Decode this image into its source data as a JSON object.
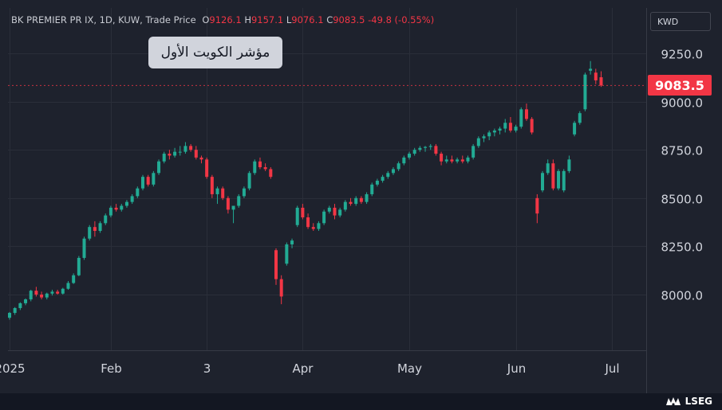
{
  "header": {
    "symbol": "BK PREMIER PR IX, 1D, KUW, Trade Price",
    "open_label": "O",
    "open": "9126.1",
    "high_label": "H",
    "high": "9157.1",
    "low_label": "L",
    "low": "9076.1",
    "close_label": "C",
    "close": "9083.5",
    "change": "-49.8 (-0.55%)"
  },
  "overlay_title": "مؤشر الكويت الأول",
  "currency": "KWD",
  "last_price": "9083.5",
  "brand": "LSEG",
  "colors": {
    "up": "#22ab94",
    "down": "#f23645",
    "background": "#1e222d",
    "grid": "#2a2e39",
    "text": "#d1d4dc"
  },
  "chart_data": {
    "type": "candlestick",
    "title": "",
    "ylim": [
      7870,
      9330
    ],
    "y_ticks": [
      "8000.0",
      "8250.0",
      "8500.0",
      "8750.0",
      "9000.0",
      "9250.0"
    ],
    "x_ticks": [
      {
        "label": "2025",
        "bar": 0
      },
      {
        "label": "Feb",
        "bar": 19
      },
      {
        "label": "3",
        "bar": 37
      },
      {
        "label": "Apr",
        "bar": 55
      },
      {
        "label": "May",
        "bar": 75
      },
      {
        "label": "Jun",
        "bar": 95
      },
      {
        "label": "Jul",
        "bar": 113
      }
    ],
    "grid": true,
    "ohlc": [
      [
        7880,
        7910,
        7870,
        7905
      ],
      [
        7905,
        7935,
        7895,
        7930
      ],
      [
        7930,
        7960,
        7920,
        7955
      ],
      [
        7955,
        7980,
        7945,
        7975
      ],
      [
        7975,
        8025,
        7965,
        8020
      ],
      [
        8020,
        8040,
        7990,
        8000
      ],
      [
        8000,
        8015,
        7975,
        7985
      ],
      [
        7985,
        8010,
        7975,
        8005
      ],
      [
        8005,
        8025,
        7995,
        8015
      ],
      [
        8015,
        8025,
        8000,
        8005
      ],
      [
        8005,
        8035,
        8000,
        8030
      ],
      [
        8030,
        8070,
        8025,
        8060
      ],
      [
        8060,
        8110,
        8055,
        8100
      ],
      [
        8100,
        8200,
        8095,
        8190
      ],
      [
        8190,
        8300,
        8180,
        8290
      ],
      [
        8290,
        8360,
        8280,
        8350
      ],
      [
        8350,
        8380,
        8300,
        8330
      ],
      [
        8330,
        8380,
        8320,
        8370
      ],
      [
        8370,
        8420,
        8360,
        8410
      ],
      [
        8410,
        8460,
        8400,
        8450
      ],
      [
        8450,
        8470,
        8430,
        8440
      ],
      [
        8440,
        8470,
        8430,
        8460
      ],
      [
        8460,
        8490,
        8450,
        8480
      ],
      [
        8480,
        8520,
        8470,
        8510
      ],
      [
        8510,
        8560,
        8500,
        8550
      ],
      [
        8550,
        8620,
        8540,
        8610
      ],
      [
        8610,
        8620,
        8560,
        8570
      ],
      [
        8570,
        8640,
        8560,
        8630
      ],
      [
        8630,
        8700,
        8620,
        8690
      ],
      [
        8690,
        8740,
        8680,
        8730
      ],
      [
        8730,
        8750,
        8700,
        8720
      ],
      [
        8720,
        8760,
        8710,
        8740
      ],
      [
        8740,
        8770,
        8720,
        8740
      ],
      [
        8740,
        8790,
        8730,
        8770
      ],
      [
        8770,
        8780,
        8740,
        8750
      ],
      [
        8750,
        8770,
        8700,
        8710
      ],
      [
        8710,
        8720,
        8680,
        8700
      ],
      [
        8700,
        8710,
        8600,
        8610
      ],
      [
        8610,
        8620,
        8500,
        8520
      ],
      [
        8520,
        8560,
        8470,
        8550
      ],
      [
        8550,
        8560,
        8490,
        8500
      ],
      [
        8500,
        8510,
        8420,
        8440
      ],
      [
        8440,
        8460,
        8370,
        8460
      ],
      [
        8460,
        8520,
        8450,
        8510
      ],
      [
        8510,
        8560,
        8500,
        8550
      ],
      [
        8550,
        8640,
        8540,
        8630
      ],
      [
        8630,
        8700,
        8620,
        8690
      ],
      [
        8690,
        8710,
        8650,
        8660
      ],
      [
        8660,
        8680,
        8640,
        8650
      ],
      [
        8650,
        8660,
        8600,
        8610
      ],
      [
        8230,
        8240,
        8050,
        8080
      ],
      [
        8080,
        8100,
        7950,
        7990
      ],
      [
        8160,
        8270,
        8150,
        8260
      ],
      [
        8260,
        8290,
        8240,
        8280
      ],
      [
        8360,
        8460,
        8350,
        8450
      ],
      [
        8450,
        8470,
        8390,
        8400
      ],
      [
        8400,
        8420,
        8340,
        8350
      ],
      [
        8350,
        8370,
        8330,
        8340
      ],
      [
        8340,
        8380,
        8330,
        8370
      ],
      [
        8370,
        8440,
        8360,
        8430
      ],
      [
        8430,
        8460,
        8420,
        8450
      ],
      [
        8450,
        8470,
        8390,
        8410
      ],
      [
        8410,
        8450,
        8400,
        8440
      ],
      [
        8440,
        8490,
        8430,
        8480
      ],
      [
        8480,
        8500,
        8460,
        8470
      ],
      [
        8470,
        8510,
        8460,
        8500
      ],
      [
        8500,
        8510,
        8470,
        8480
      ],
      [
        8480,
        8530,
        8470,
        8520
      ],
      [
        8520,
        8580,
        8510,
        8570
      ],
      [
        8570,
        8600,
        8560,
        8590
      ],
      [
        8590,
        8620,
        8580,
        8610
      ],
      [
        8610,
        8640,
        8600,
        8630
      ],
      [
        8630,
        8660,
        8620,
        8650
      ],
      [
        8650,
        8690,
        8640,
        8680
      ],
      [
        8680,
        8720,
        8670,
        8710
      ],
      [
        8710,
        8740,
        8700,
        8730
      ],
      [
        8730,
        8760,
        8720,
        8750
      ],
      [
        8750,
        8770,
        8740,
        8760
      ],
      [
        8760,
        8770,
        8740,
        8765
      ],
      [
        8765,
        8780,
        8750,
        8770
      ],
      [
        8770,
        8780,
        8720,
        8730
      ],
      [
        8730,
        8740,
        8670,
        8690
      ],
      [
        8690,
        8720,
        8680,
        8700
      ],
      [
        8700,
        8720,
        8680,
        8690
      ],
      [
        8690,
        8710,
        8680,
        8700
      ],
      [
        8700,
        8720,
        8680,
        8690
      ],
      [
        8690,
        8720,
        8680,
        8710
      ],
      [
        8710,
        8780,
        8700,
        8770
      ],
      [
        8770,
        8820,
        8760,
        8810
      ],
      [
        8810,
        8830,
        8790,
        8820
      ],
      [
        8820,
        8850,
        8800,
        8840
      ],
      [
        8840,
        8860,
        8820,
        8850
      ],
      [
        8850,
        8870,
        8830,
        8860
      ],
      [
        8860,
        8910,
        8840,
        8890
      ],
      [
        8890,
        8920,
        8840,
        8850
      ],
      [
        8850,
        8880,
        8840,
        8870
      ],
      [
        8870,
        8970,
        8860,
        8960
      ],
      [
        8960,
        8990,
        8900,
        8910
      ],
      [
        8910,
        8920,
        8830,
        8840
      ],
      [
        8500,
        8520,
        8370,
        8420
      ],
      [
        8540,
        8640,
        8530,
        8630
      ],
      [
        8630,
        8700,
        8620,
        8680
      ],
      [
        8680,
        8700,
        8540,
        8550
      ],
      [
        8550,
        8650,
        8540,
        8640
      ],
      [
        8540,
        8650,
        8530,
        8640
      ],
      [
        8640,
        8720,
        8630,
        8700
      ],
      [
        8830,
        8900,
        8820,
        8890
      ],
      [
        8890,
        8950,
        8880,
        8940
      ],
      [
        8960,
        9150,
        8950,
        9140
      ],
      [
        9160,
        9210,
        9140,
        9170
      ],
      [
        9150,
        9170,
        9090,
        9110
      ],
      [
        9126.1,
        9157.1,
        9076.1,
        9083.5
      ]
    ]
  }
}
